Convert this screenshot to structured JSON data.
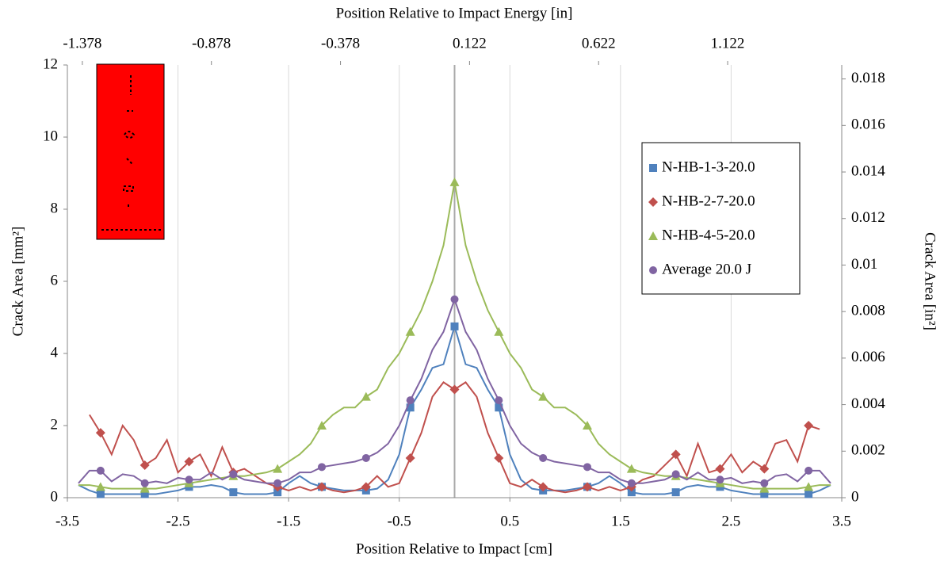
{
  "chart_data": {
    "type": "line",
    "xlabel": "Position Relative to Impact [cm]",
    "x2label": "Position Relative to Impact Energy [in]",
    "ylabel": "Crack Area [mm²]",
    "y2label": "Crack Area [in²]",
    "x": [
      -3.4,
      -3.3,
      -3.2,
      -3.1,
      -3.0,
      -2.9,
      -2.8,
      -2.7,
      -2.6,
      -2.5,
      -2.4,
      -2.3,
      -2.2,
      -2.1,
      -2.0,
      -1.9,
      -1.8,
      -1.7,
      -1.6,
      -1.5,
      -1.4,
      -1.3,
      -1.2,
      -1.1,
      -1.0,
      -0.9,
      -0.8,
      -0.7,
      -0.6,
      -0.5,
      -0.4,
      -0.3,
      -0.2,
      -0.1,
      0,
      0.1,
      0.2,
      0.3,
      0.4,
      0.5,
      0.6,
      0.7,
      0.8,
      0.9,
      1.0,
      1.1,
      1.2,
      1.3,
      1.4,
      1.5,
      1.6,
      1.7,
      1.8,
      1.9,
      2.0,
      2.1,
      2.2,
      2.3,
      2.4,
      2.5,
      2.6,
      2.7,
      2.8,
      2.9,
      3.0,
      3.1,
      3.2,
      3.3,
      3.4
    ],
    "series": [
      {
        "name": "N-HB-1-3-20.0",
        "color": "#4f81bd",
        "marker": "square",
        "values": [
          0.35,
          0.2,
          0.1,
          0.1,
          0.1,
          0.1,
          0.1,
          0.1,
          0.15,
          0.2,
          0.3,
          0.3,
          0.35,
          0.3,
          0.15,
          0.1,
          0.1,
          0.1,
          0.15,
          0.4,
          0.6,
          0.4,
          0.3,
          0.25,
          0.2,
          0.2,
          0.2,
          0.25,
          0.5,
          1.2,
          2.5,
          3.0,
          3.6,
          3.7,
          4.75,
          3.7,
          3.6,
          3.0,
          2.5,
          1.2,
          0.5,
          0.25,
          0.2,
          0.2,
          0.2,
          0.25,
          0.3,
          0.4,
          0.6,
          0.4,
          0.15,
          0.1,
          0.1,
          0.1,
          0.15,
          0.3,
          0.35,
          0.3,
          0.3,
          0.2,
          0.15,
          0.1,
          0.1,
          0.1,
          0.1,
          0.1,
          0.1,
          0.2,
          0.35
        ]
      },
      {
        "name": "N-HB-2-7-20.0",
        "color": "#c0504d",
        "marker": "diamond",
        "values": [
          null,
          2.3,
          1.8,
          1.2,
          2.0,
          1.6,
          0.9,
          1.1,
          1.6,
          0.7,
          1.0,
          1.2,
          0.6,
          1.4,
          0.7,
          0.8,
          0.6,
          0.4,
          0.3,
          0.2,
          0.3,
          0.2,
          0.3,
          0.2,
          0.15,
          0.2,
          0.3,
          0.6,
          0.3,
          0.4,
          1.1,
          1.8,
          2.8,
          3.2,
          3.0,
          3.2,
          2.8,
          1.8,
          1.1,
          0.4,
          0.3,
          0.5,
          0.3,
          0.2,
          0.15,
          0.2,
          0.3,
          0.2,
          0.3,
          0.2,
          0.3,
          0.5,
          0.6,
          0.9,
          1.2,
          0.6,
          1.5,
          0.7,
          0.8,
          1.2,
          0.7,
          1.0,
          0.8,
          1.5,
          1.6,
          1.0,
          2.0,
          1.9,
          null
        ]
      },
      {
        "name": "N-HB-4-5-20.0",
        "color": "#9bbb59",
        "marker": "triangle",
        "values": [
          0.35,
          0.35,
          0.3,
          0.25,
          0.25,
          0.25,
          0.25,
          0.25,
          0.3,
          0.35,
          0.4,
          0.45,
          0.5,
          0.55,
          0.6,
          0.6,
          0.65,
          0.7,
          0.8,
          1.0,
          1.2,
          1.5,
          2.0,
          2.3,
          2.5,
          2.5,
          2.8,
          3.0,
          3.6,
          4.0,
          4.6,
          5.2,
          6.0,
          7.0,
          8.75,
          7.0,
          6.0,
          5.2,
          4.6,
          4.0,
          3.6,
          3.0,
          2.8,
          2.5,
          2.5,
          2.3,
          2.0,
          1.5,
          1.2,
          1.0,
          0.8,
          0.7,
          0.65,
          0.6,
          0.6,
          0.55,
          0.5,
          0.45,
          0.4,
          0.35,
          0.3,
          0.25,
          0.25,
          0.25,
          0.25,
          0.25,
          0.3,
          0.35,
          0.35
        ]
      },
      {
        "name": "Average 20.0 J",
        "color": "#8064a2",
        "marker": "circle",
        "values": [
          0.4,
          0.75,
          0.75,
          0.45,
          0.65,
          0.6,
          0.4,
          0.45,
          0.4,
          0.55,
          0.5,
          0.5,
          0.7,
          0.5,
          0.65,
          0.5,
          0.45,
          0.4,
          0.4,
          0.5,
          0.7,
          0.7,
          0.85,
          0.9,
          0.95,
          1.0,
          1.1,
          1.25,
          1.5,
          2.0,
          2.7,
          3.3,
          4.1,
          4.6,
          5.5,
          4.6,
          4.1,
          3.3,
          2.7,
          2.0,
          1.5,
          1.25,
          1.1,
          1.0,
          0.95,
          0.9,
          0.85,
          0.7,
          0.7,
          0.5,
          0.4,
          0.4,
          0.45,
          0.5,
          0.65,
          0.5,
          0.7,
          0.5,
          0.5,
          0.55,
          0.4,
          0.45,
          0.4,
          0.6,
          0.65,
          0.45,
          0.75,
          0.75,
          0.4
        ]
      }
    ],
    "xlim": [
      -3.5,
      3.5
    ],
    "xticks": [
      -3.5,
      -2.5,
      -1.5,
      -0.5,
      0.5,
      1.5,
      2.5,
      3.5
    ],
    "x2lim": [
      -1.436,
      1.564
    ],
    "x2ticks": [
      -1.378,
      -0.878,
      -0.378,
      0.122,
      0.622,
      1.122
    ],
    "ylim": [
      0,
      12
    ],
    "yticks": [
      0,
      2,
      4,
      6,
      8,
      10,
      12
    ],
    "y2lim": [
      0,
      0.0186
    ],
    "y2ticks": [
      0,
      0.002,
      0.004,
      0.006,
      0.008,
      0.01,
      0.012,
      0.014,
      0.016,
      0.018
    ],
    "grid": "x",
    "legend": "right"
  }
}
